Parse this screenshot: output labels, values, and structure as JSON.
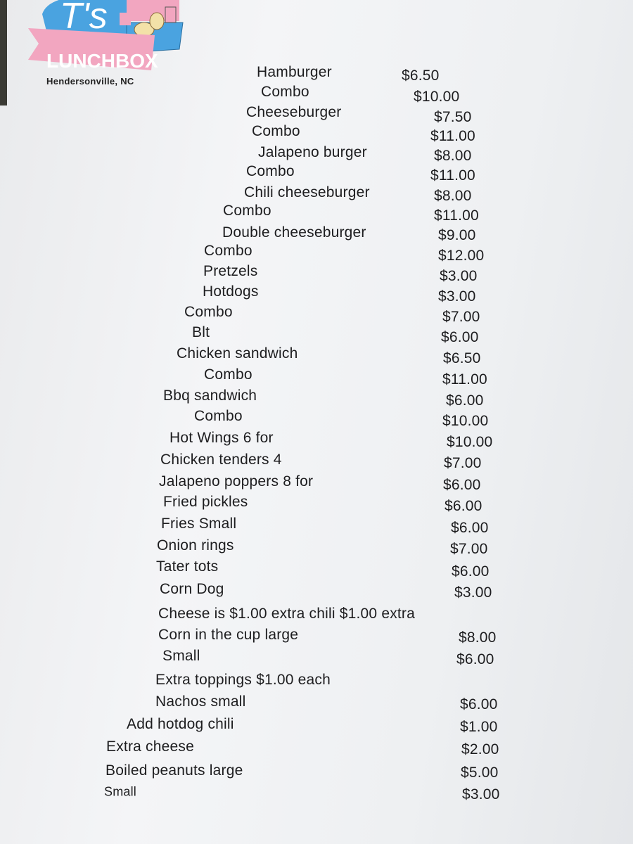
{
  "logo": {
    "brand_initial": "T's",
    "brand_name": "LUNCHBOX",
    "location": "Hendersonville, NC",
    "colors": {
      "pink": "#f2a6c0",
      "blue": "#4aa3e0"
    }
  },
  "menu": {
    "items": [
      {
        "name": "Hamburger",
        "price": "$6.50"
      },
      {
        "name": "Combo",
        "price": "$10.00"
      },
      {
        "name": "Cheeseburger",
        "price": "$7.50"
      },
      {
        "name": "Combo",
        "price": "$11.00"
      },
      {
        "name": "Jalapeno burger",
        "price": "$8.00"
      },
      {
        "name": "Combo",
        "price": "$11.00"
      },
      {
        "name": "Chili cheeseburger",
        "price": "$8.00"
      },
      {
        "name": "Combo",
        "price": "$11.00"
      },
      {
        "name": "Double cheeseburger",
        "price": "$9.00"
      },
      {
        "name": "Combo",
        "price": "$12.00"
      },
      {
        "name": "Pretzels",
        "price": "$3.00"
      },
      {
        "name": "Hotdogs",
        "price": "$3.00"
      },
      {
        "name": "Combo",
        "price": "$7.00"
      },
      {
        "name": "Blt",
        "price": "$6.00"
      },
      {
        "name": "Chicken sandwich",
        "price": "$6.50"
      },
      {
        "name": "Combo",
        "price": "$11.00"
      },
      {
        "name": "Bbq sandwich",
        "price": "$6.00"
      },
      {
        "name": "Combo",
        "price": "$10.00"
      },
      {
        "name": "Hot Wings 6 for",
        "price": "$10.00"
      },
      {
        "name": "Chicken tenders 4",
        "price": "$7.00"
      },
      {
        "name": "Jalapeno poppers 8 for",
        "price": "$6.00"
      },
      {
        "name": "Fried pickles",
        "price": "$6.00"
      },
      {
        "name": "Fries Small",
        "price": "$6.00"
      },
      {
        "name": "Onion rings",
        "price": "$7.00"
      },
      {
        "name": "Tater tots",
        "price": "$6.00"
      },
      {
        "name": "Corn Dog",
        "price": "$3.00"
      },
      {
        "name": "Cheese is $1.00 extra chili $1.00 extra",
        "price": ""
      },
      {
        "name": "Corn in the cup large",
        "price": "$8.00"
      },
      {
        "name": "Small",
        "price": "$6.00"
      },
      {
        "name": "Extra toppings $1.00 each",
        "price": ""
      },
      {
        "name": "Nachos small",
        "price": "$6.00"
      },
      {
        "name": "Add hotdog chili",
        "price": "$1.00"
      },
      {
        "name": "Extra cheese",
        "price": "$2.00"
      },
      {
        "name": "Boiled peanuts large",
        "price": "$5.00"
      },
      {
        "name": "Small",
        "price": "$3.00"
      }
    ]
  }
}
